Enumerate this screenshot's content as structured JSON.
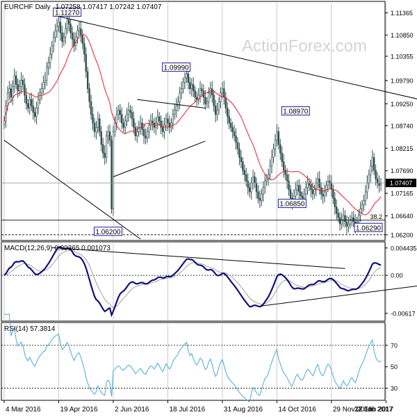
{
  "watermark": "ActionForex.com",
  "colors": {
    "price": "#2f4f4f",
    "ma": "#e0202a",
    "macd": "#10107a",
    "signal": "#a0a0a0",
    "rsi": "#4aa8d8",
    "trend": "#000000",
    "grid": "#c8c8c8",
    "frame": "#000000",
    "label_box": "#1b1b9a",
    "watermark": "#d4d4d4"
  },
  "chart_data": [
    {
      "type": "candlestick",
      "title": "EURCHF Daily",
      "ohlc_readout": "1.07258 1.07417 1.07242 1.07407",
      "ylim": [
        1.061,
        1.116
      ],
      "y_ticks": [
        "1.11365",
        "1.10850",
        "1.10355",
        "1.09790",
        "1.09250",
        "1.08740",
        "1.08215",
        "1.07690",
        "1.07165",
        "1.06640",
        "1.06200"
      ],
      "y_tick_values": [
        1.11365,
        1.1085,
        1.10355,
        1.0979,
        1.0925,
        1.0874,
        1.08215,
        1.0769,
        1.07165,
        1.0664,
        1.062
      ],
      "x_labels": [
        "4 Mar 2016",
        "19 Apr 2016",
        "2 Jun 2016",
        "18 Jul 2016",
        "31 Aug 2016",
        "14 Oct 2016",
        "29 Nov 2016",
        "12 Jan 2017",
        "27 Feb 2017"
      ],
      "x_label_index": [
        0,
        32,
        64,
        96,
        128,
        160,
        192,
        224,
        256
      ],
      "close": [
        1.0885,
        1.092,
        1.095,
        1.096,
        1.094,
        1.0965,
        1.099,
        1.097,
        1.0955,
        1.0965,
        1.098,
        1.097,
        1.0945,
        1.0925,
        1.0915,
        1.0935,
        1.092,
        1.0905,
        1.0895,
        1.0915,
        1.0935,
        1.095,
        1.096,
        1.0975,
        1.098,
        1.101,
        1.102,
        1.104,
        1.106,
        1.108,
        1.1095,
        1.1105,
        1.1115,
        1.109,
        1.107,
        1.108,
        1.11,
        1.112,
        1.111,
        1.109,
        1.1075,
        1.106,
        1.108,
        1.1095,
        1.11,
        1.1085,
        1.1065,
        1.104,
        1.1,
        1.096,
        1.093,
        1.09,
        1.088,
        1.086,
        1.087,
        1.089,
        1.086,
        1.083,
        1.081,
        1.08,
        1.085,
        1.086,
        1.084,
        1.068,
        1.086,
        1.088,
        1.09,
        1.091,
        1.09,
        1.088,
        1.087,
        1.0885,
        1.09,
        1.091,
        1.0905,
        1.089,
        1.087,
        1.085,
        1.086,
        1.087,
        1.088,
        1.0865,
        1.085,
        1.0845,
        1.086,
        1.0875,
        1.0885,
        1.088,
        1.087,
        1.088,
        1.0895,
        1.0885,
        1.087,
        1.086,
        1.0875,
        1.089,
        1.088,
        1.087,
        1.088,
        1.09,
        1.091,
        1.092,
        1.093,
        1.095,
        1.096,
        1.0975,
        1.0985,
        1.0995,
        1.0975,
        1.096,
        1.097,
        1.0955,
        1.094,
        1.0935,
        1.0945,
        1.096,
        1.0955,
        1.094,
        1.0925,
        1.093,
        1.095,
        1.096,
        1.0945,
        1.092,
        1.09,
        1.091,
        1.093,
        1.095,
        1.096,
        1.094,
        1.0915,
        1.0895,
        1.088,
        1.087,
        1.086,
        1.085,
        1.0835,
        1.082,
        1.08,
        1.079,
        1.077,
        1.076,
        1.0745,
        1.073,
        1.072,
        1.074,
        1.0755,
        1.074,
        1.072,
        1.0705,
        1.07,
        1.0715,
        1.073,
        1.0745,
        1.075,
        1.076,
        1.078,
        1.08,
        1.082,
        1.084,
        1.086,
        1.083,
        1.081,
        1.079,
        1.077,
        1.076,
        1.0745,
        1.0725,
        1.0705,
        1.0695,
        1.071,
        1.0725,
        1.0735,
        1.072,
        1.071,
        1.0705,
        1.0715,
        1.073,
        1.074,
        1.0735,
        1.0725,
        1.0715,
        1.0725,
        1.074,
        1.075,
        1.073,
        1.0715,
        1.071,
        1.072,
        1.0735,
        1.0745,
        1.074,
        1.0725,
        1.0705,
        1.0685,
        1.067,
        1.066,
        1.0645,
        1.0655,
        1.0665,
        1.065,
        1.064,
        1.0645,
        1.0655,
        1.066,
        1.065,
        1.064,
        1.065,
        1.0665,
        1.068,
        1.069,
        1.07,
        1.072,
        1.074,
        1.076,
        1.078,
        1.08,
        1.077,
        1.075,
        1.074,
        1.0735,
        1.074
      ],
      "ma_label": "",
      "levels": [
        {
          "label": "1.11270",
          "value": 1.1127,
          "index": 28
        },
        {
          "label": "1.09990",
          "value": 1.0999,
          "index": 92
        },
        {
          "label": "1.08970",
          "value": 1.0897,
          "index": 162
        },
        {
          "label": "1.06850",
          "value": 1.0685,
          "index": 160
        },
        {
          "label": "1.06290",
          "value": 1.0629,
          "index": 222
        },
        {
          "label": "1.06200",
          "value": 1.062,
          "index": 52
        }
      ],
      "fib_label": "38.2",
      "fib_value": 1.0654,
      "support_value": 1.062,
      "current_label": "1.07407",
      "current_value": 1.07407
    },
    {
      "type": "line",
      "title": "MACD(12,26,9) 0.00365 0.001073",
      "ylim": [
        -0.0072,
        0.0052
      ],
      "y_ticks": [
        "0.004435",
        "0.00",
        "-0.00617"
      ],
      "y_tick_values": [
        0.004435,
        0.0,
        -0.00617
      ]
    },
    {
      "type": "line",
      "title": "RSI(14) 57.3814",
      "ylim": [
        20,
        90
      ],
      "y_ticks": [
        "70",
        "50",
        "30"
      ],
      "y_tick_values": [
        70,
        50,
        30
      ],
      "levels": [
        70,
        30
      ]
    }
  ]
}
